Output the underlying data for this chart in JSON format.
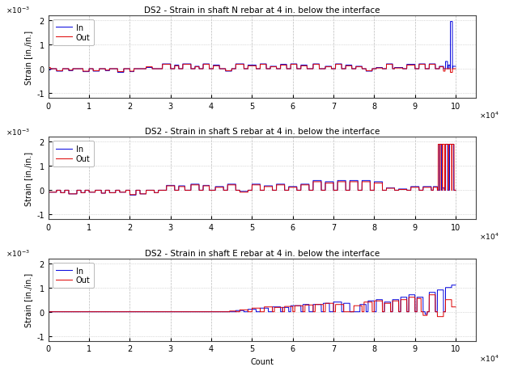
{
  "titles": [
    "DS2 - Strain in shaft N rebar at 4 in. below the interface",
    "DS2 - Strain in shaft S rebar at 4 in. below the interface",
    "DS2 - Strain in shaft E rebar at 4 in. below the interface"
  ],
  "xlabel": "Count",
  "ylabel": "Strain [in./in.]",
  "xlim": [
    0,
    105000
  ],
  "ylim": [
    -0.0012,
    0.0022
  ],
  "xticks": [
    0,
    10000,
    20000,
    30000,
    40000,
    50000,
    60000,
    70000,
    80000,
    90000,
    100000
  ],
  "xticklabels": [
    "0",
    "1",
    "2",
    "3",
    "4",
    "5",
    "6",
    "7",
    "8",
    "9",
    "10"
  ],
  "yticks": [
    -0.001,
    0,
    0.001,
    0.002
  ],
  "yticklabels": [
    "-1",
    "0",
    "1",
    "2"
  ],
  "color_in": "#0000dd",
  "color_out": "#dd0000",
  "background": "#ffffff",
  "grid_color": "#bbbbbb",
  "legend_labels": [
    "In",
    "Out"
  ],
  "figsize": [
    6.24,
    4.6
  ],
  "dpi": 100
}
